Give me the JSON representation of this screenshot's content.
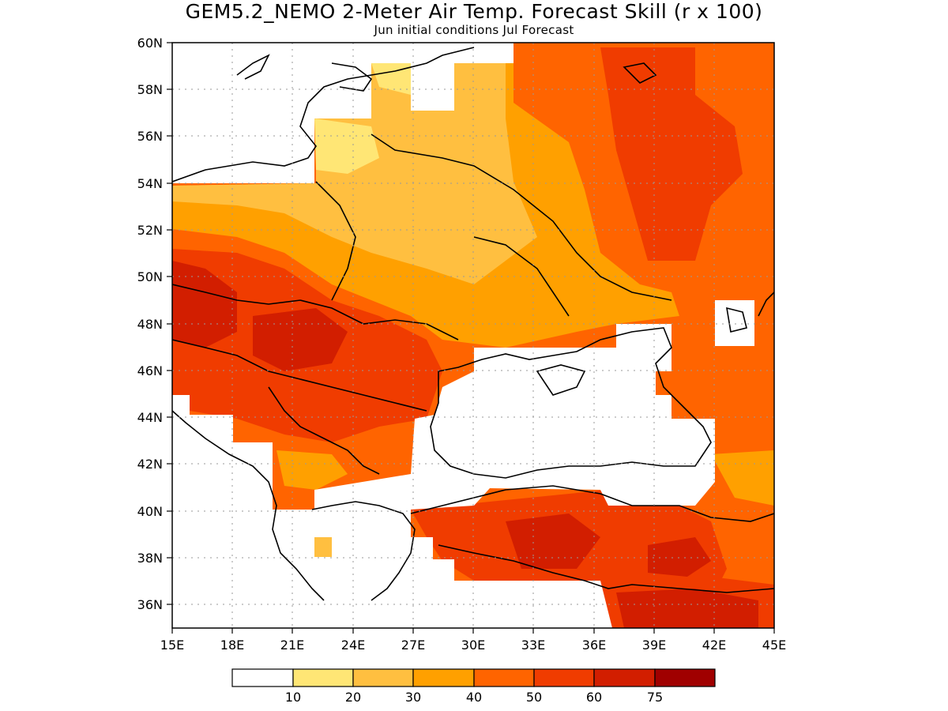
{
  "title": "GEM5.2_NEMO 2-Meter Air Temp. Forecast Skill (r x 100)",
  "subtitle": "Jun initial conditions  Jul Forecast",
  "map": {
    "lon_range": [
      15,
      45
    ],
    "lat_range": [
      35,
      60
    ],
    "lon_ticks": [
      "15E",
      "18E",
      "21E",
      "24E",
      "27E",
      "30E",
      "33E",
      "36E",
      "39E",
      "42E",
      "45E"
    ],
    "lat_ticks": [
      "36N",
      "38N",
      "40N",
      "42N",
      "44N",
      "46N",
      "48N",
      "50N",
      "52N",
      "54N",
      "56N",
      "58N",
      "60N"
    ],
    "grid": true
  },
  "colorbar": {
    "colors": [
      "#ffffff",
      "#ffe675",
      "#ffbf40",
      "#ffa000",
      "#ff6400",
      "#f03c00",
      "#d21e00",
      "#a00000"
    ],
    "labels": [
      "10",
      "20",
      "30",
      "40",
      "50",
      "60",
      "75"
    ]
  }
}
